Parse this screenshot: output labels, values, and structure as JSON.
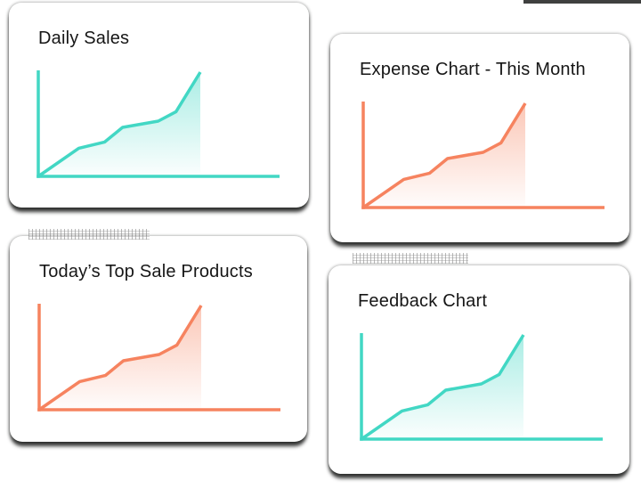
{
  "page": {
    "background_color": "#ffffff",
    "description": "Four dashboard preview cards, each containing a rising area line chart with plain L-shaped axes and no tick labels"
  },
  "colors": {
    "teal_accent": "#42D7C4",
    "orange_accent": "#F6835F",
    "title_text": "#161616",
    "card_background": "#ffffff",
    "shadow": "#1d1f1d"
  },
  "cards": [
    {
      "title": "Daily Sales",
      "accent_color": "#42D7C4"
    },
    {
      "title": "Expense Chart - This Month",
      "accent_color": "#F6835F"
    },
    {
      "title": "Today’s Top Sale Products",
      "accent_color": "#F6835F"
    },
    {
      "title": "Feedback Chart",
      "accent_color": "#42D7C4"
    }
  ],
  "chart_data": [
    {
      "type": "area",
      "title": "Daily Sales",
      "x": [
        0,
        25,
        41,
        52,
        74,
        85,
        100
      ],
      "y": [
        0,
        27,
        33,
        47,
        53,
        62,
        100
      ],
      "xlim": [
        0,
        100
      ],
      "ylim": [
        0,
        100
      ],
      "xlabel": "",
      "ylabel": "",
      "x_ticks": [],
      "y_ticks": [],
      "grid": false,
      "legend": false,
      "line_color": "#42D7C4",
      "fill": "vertical gradient of line color fading to white, clipped vertically under last point"
    },
    {
      "type": "area",
      "title": "Expense Chart - This Month",
      "x": [
        0,
        25,
        41,
        52,
        74,
        85,
        100
      ],
      "y": [
        0,
        27,
        33,
        47,
        53,
        62,
        100
      ],
      "xlim": [
        0,
        100
      ],
      "ylim": [
        0,
        100
      ],
      "xlabel": "",
      "ylabel": "",
      "x_ticks": [],
      "y_ticks": [],
      "grid": false,
      "legend": false,
      "line_color": "#F6835F",
      "fill": "vertical gradient of line color fading to white, clipped vertically under last point"
    },
    {
      "type": "area",
      "title": "Today’s Top Sale Products",
      "x": [
        0,
        25,
        41,
        52,
        74,
        85,
        100
      ],
      "y": [
        0,
        27,
        33,
        47,
        53,
        62,
        100
      ],
      "xlim": [
        0,
        100
      ],
      "ylim": [
        0,
        100
      ],
      "xlabel": "",
      "ylabel": "",
      "x_ticks": [],
      "y_ticks": [],
      "grid": false,
      "legend": false,
      "line_color": "#F6835F",
      "fill": "vertical gradient of line color fading to white, clipped vertically under last point"
    },
    {
      "type": "area",
      "title": "Feedback Chart",
      "x": [
        0,
        25,
        41,
        52,
        74,
        85,
        100
      ],
      "y": [
        0,
        27,
        33,
        47,
        53,
        62,
        100
      ],
      "xlim": [
        0,
        100
      ],
      "ylim": [
        0,
        100
      ],
      "xlabel": "",
      "ylabel": "",
      "x_ticks": [],
      "y_ticks": [],
      "grid": false,
      "legend": false,
      "line_color": "#42D7C4",
      "fill": "vertical gradient of line color fading to white, clipped vertically under last point"
    }
  ]
}
